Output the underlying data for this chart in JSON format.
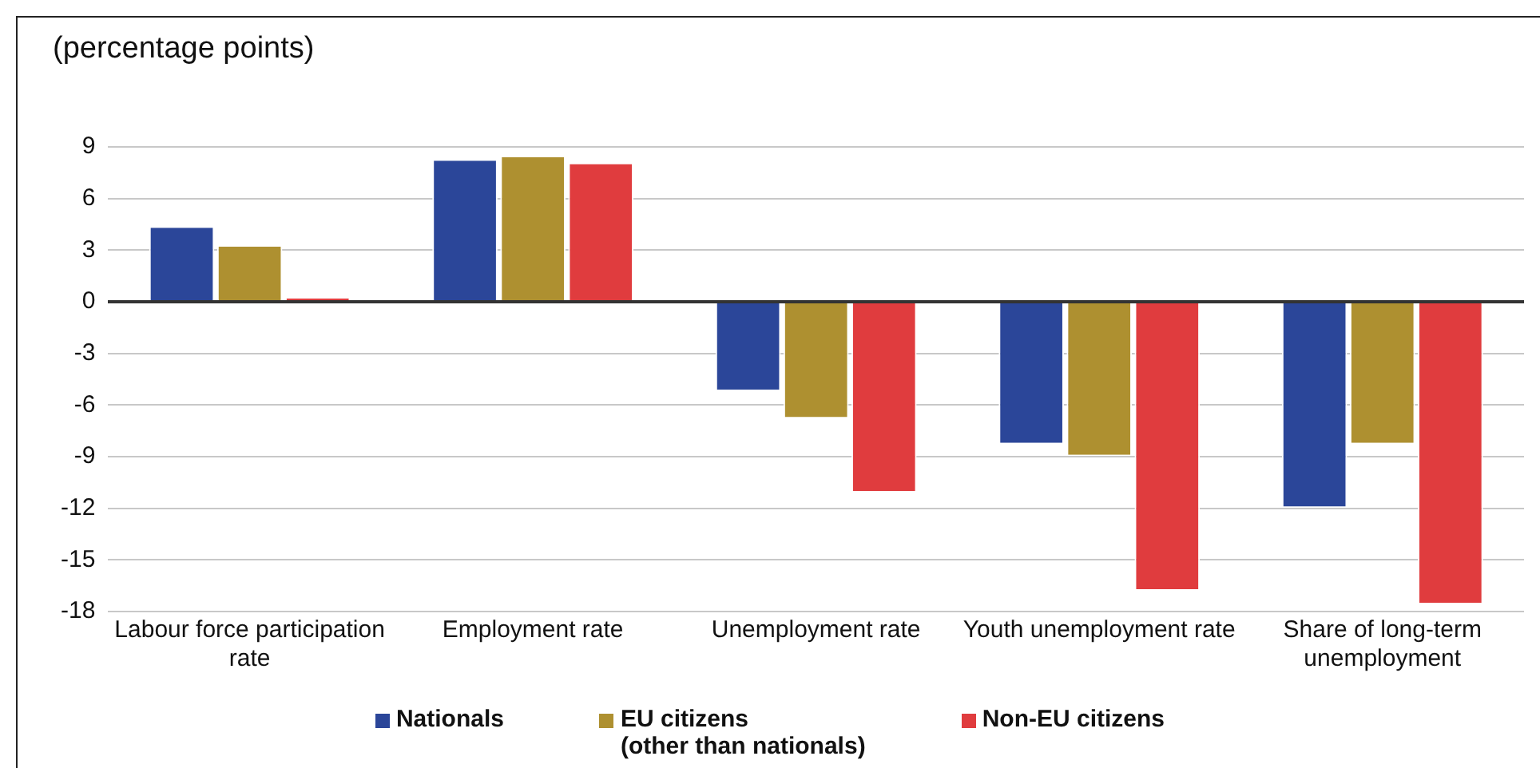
{
  "chart_data": {
    "type": "bar",
    "ylabel": "(percentage points)",
    "categories": [
      "Labour force participation rate",
      "Employment rate",
      "Unemployment rate",
      "Youth unemployment rate",
      "Share of long-term unemployment"
    ],
    "series": [
      {
        "name": "Nationals",
        "color": "#2b4699",
        "values": [
          4.3,
          8.2,
          -5.1,
          -8.2,
          -11.9
        ]
      },
      {
        "name": "EU citizens (other than nationals)",
        "color": "#ae9030",
        "values": [
          3.2,
          8.4,
          -6.7,
          -8.9,
          -8.2
        ]
      },
      {
        "name": "Non-EU citizens",
        "color": "#e03c3e",
        "values": [
          0.2,
          8.0,
          -11.0,
          -16.7,
          -17.5
        ]
      }
    ],
    "ylim": [
      -18,
      9
    ],
    "yticks": [
      -18,
      -15,
      -12,
      -9,
      -6,
      -3,
      0,
      3,
      6,
      9
    ],
    "grid": "y",
    "legend": "bottom"
  }
}
